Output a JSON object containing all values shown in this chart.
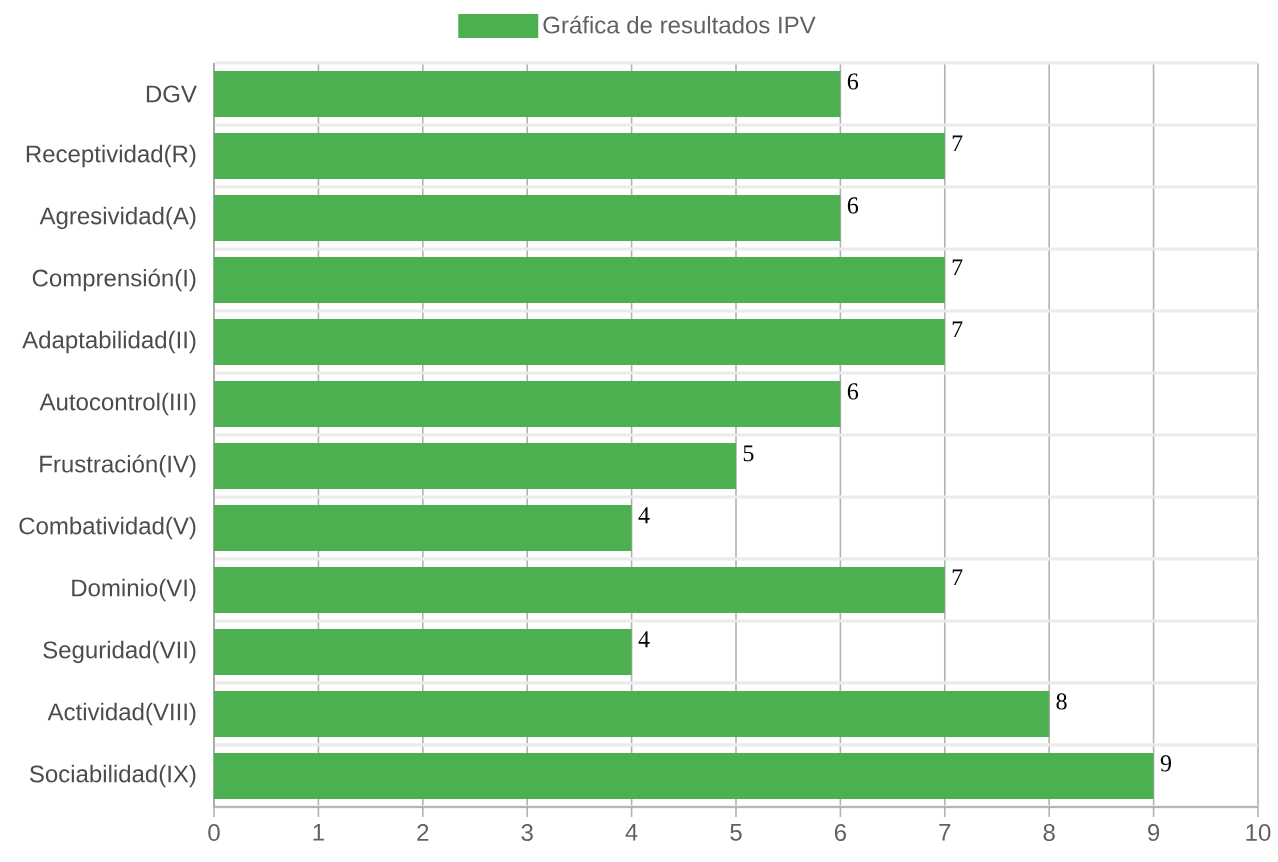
{
  "chart_data": {
    "type": "bar",
    "orientation": "horizontal",
    "categories": [
      "DGV",
      "Receptividad(R)",
      "Agresividad(A)",
      "Comprensión(I)",
      "Adaptabilidad(II)",
      "Autocontrol(III)",
      "Frustración(IV)",
      "Combatividad(V)",
      "Dominio(VI)",
      "Seguridad(VII)",
      "Actividad(VIII)",
      "Sociabilidad(IX)"
    ],
    "series": [
      {
        "name": "Gráfica de resultados IPV",
        "color": "#4caf50",
        "values": [
          6,
          7,
          6,
          7,
          7,
          6,
          5,
          4,
          7,
          4,
          8,
          9
        ]
      }
    ],
    "xlim": [
      0,
      10
    ],
    "xticks": [
      0,
      1,
      2,
      3,
      4,
      5,
      6,
      7,
      8,
      9,
      10
    ],
    "grid": true,
    "legend": "top",
    "data_labels": true
  }
}
